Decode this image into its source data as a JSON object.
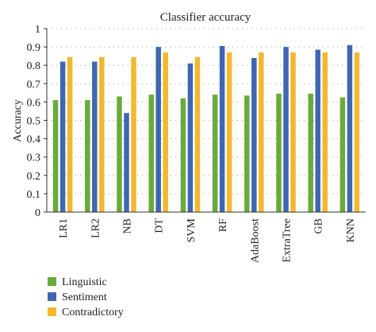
{
  "chart_data": {
    "type": "bar",
    "title": "Classifier accuracy",
    "xlabel": "",
    "ylabel": "Accuracy",
    "ylim": [
      0,
      1
    ],
    "yticks": [
      "0",
      "0.1",
      "0.2",
      "0.3",
      "0.4",
      "0.5",
      "0.6",
      "0.7",
      "0.8",
      "0.9",
      "1"
    ],
    "grid": "dotted horizontal",
    "legend_position": "bottom-left",
    "categories": [
      "LR1",
      "LR2",
      "NB",
      "DT",
      "SVM",
      "RF",
      "AdaBoost",
      "ExtraTree",
      "GB",
      "KNN"
    ],
    "series": [
      {
        "name": "Linguistic",
        "color": "#6aaa3a",
        "values": [
          0.61,
          0.61,
          0.63,
          0.64,
          0.62,
          0.64,
          0.635,
          0.645,
          0.645,
          0.625
        ]
      },
      {
        "name": "Sentiment",
        "color": "#3f67b1",
        "values": [
          0.82,
          0.82,
          0.54,
          0.9,
          0.81,
          0.905,
          0.84,
          0.9,
          0.885,
          0.91
        ]
      },
      {
        "name": "Contradictory",
        "color": "#f2b82e",
        "values": [
          0.845,
          0.845,
          0.845,
          0.87,
          0.845,
          0.87,
          0.87,
          0.87,
          0.87,
          0.87
        ]
      }
    ]
  }
}
